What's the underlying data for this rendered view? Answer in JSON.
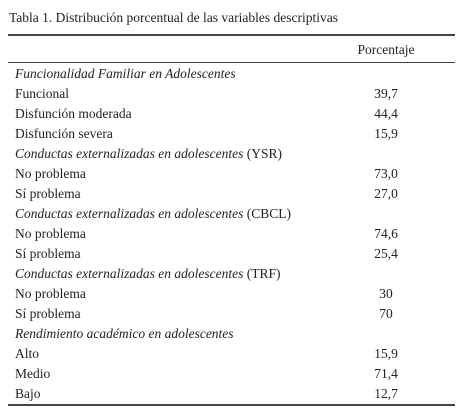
{
  "caption": "Tabla 1. Distribución porcentual de las variables descriptivas",
  "table": {
    "header": "Porcentaje",
    "sections": [
      {
        "title": "Funcionalidad Familiar en Adolescentes",
        "rows": [
          [
            "Funcional",
            "39,7"
          ],
          [
            "Disfunción moderada",
            "44,4"
          ],
          [
            "Disfunción severa",
            "15,9"
          ]
        ]
      },
      {
        "title": "Conductas externalizadas en adolescentes",
        "suffix": "(YSR)",
        "rows": [
          [
            "No problema",
            "73,0"
          ],
          [
            "Sí problema",
            "27,0"
          ]
        ]
      },
      {
        "title": "Conductas externalizadas en adolescentes",
        "suffix": "(CBCL)",
        "rows": [
          [
            "No problema",
            "74,6"
          ],
          [
            "Sí problema",
            "25,4"
          ]
        ]
      },
      {
        "title": "Conductas externalizadas en adolescentes",
        "suffix": "(TRF)",
        "rows": [
          [
            "No problema",
            "30"
          ],
          [
            "Sí problema",
            "70"
          ]
        ]
      },
      {
        "title": "Rendimiento académico en adolescentes",
        "rows": [
          [
            "Alto",
            "15,9"
          ],
          [
            "Medio",
            "71,4"
          ],
          [
            "Bajo",
            "12,7"
          ]
        ]
      }
    ]
  }
}
